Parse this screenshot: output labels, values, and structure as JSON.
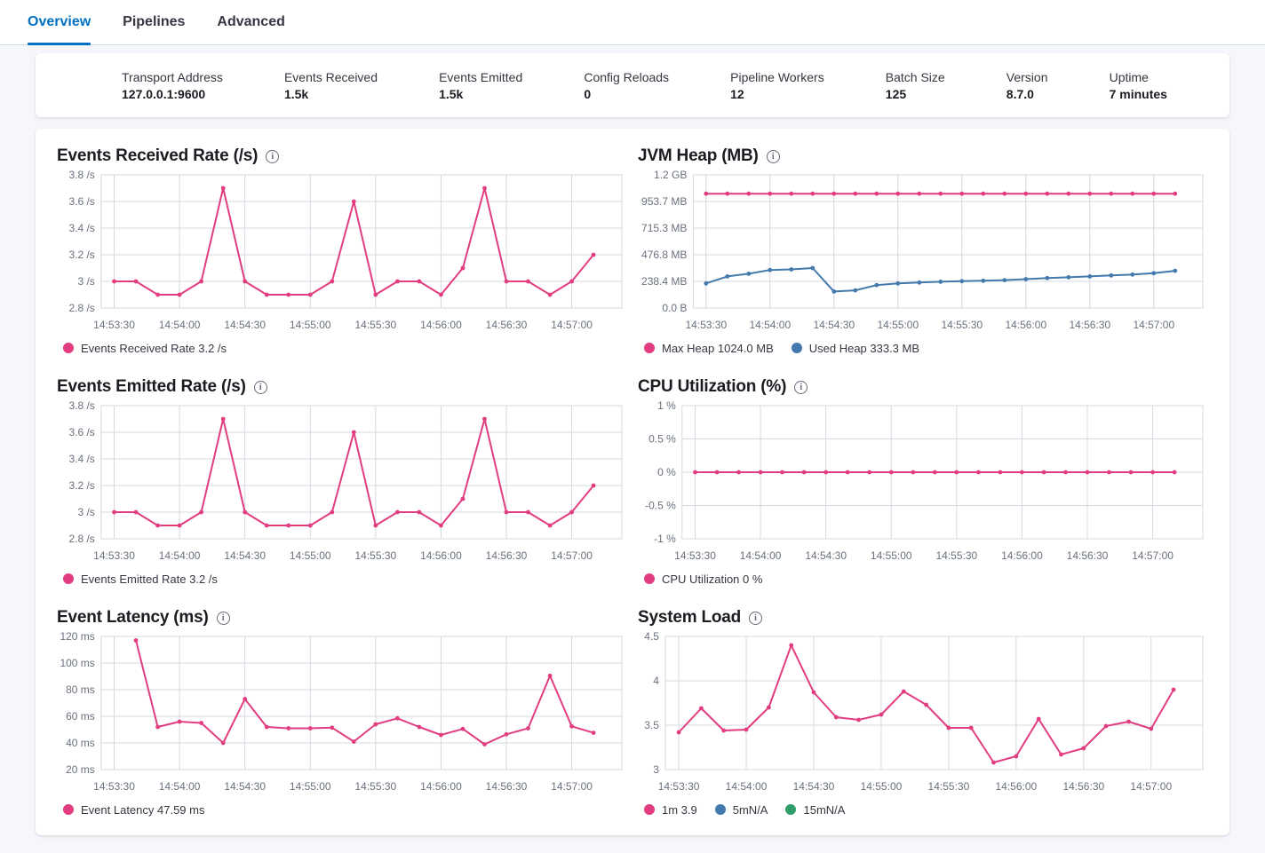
{
  "tabs": [
    {
      "label": "Overview",
      "active": true
    },
    {
      "label": "Pipelines",
      "active": false
    },
    {
      "label": "Advanced",
      "active": false
    }
  ],
  "summary": {
    "items": [
      {
        "label": "Transport Address",
        "value": "127.0.0.1:9600"
      },
      {
        "label": "Events Received",
        "value": "1.5k"
      },
      {
        "label": "Events Emitted",
        "value": "1.5k"
      },
      {
        "label": "Config Reloads",
        "value": "0"
      },
      {
        "label": "Pipeline Workers",
        "value": "12"
      },
      {
        "label": "Batch Size",
        "value": "125"
      },
      {
        "label": "Version",
        "value": "8.7.0"
      },
      {
        "label": "Uptime",
        "value": "7 minutes"
      }
    ]
  },
  "icons": {
    "info_glyph": "i"
  },
  "colors": {
    "pink": "#e23d80",
    "blue": "#4379ad",
    "green": "#2f9e69",
    "grid": "#d5d8e0",
    "tick_text": "#69707d"
  },
  "chart_data": [
    {
      "type": "line",
      "title": "Events Received Rate (/s)",
      "start_time": "14:53:30",
      "interval_seconds": 10,
      "ylim": [
        2.8,
        3.8
      ],
      "y_ticks": [
        {
          "value": 3.8,
          "label": "3.8 /s"
        },
        {
          "value": 3.6,
          "label": "3.6 /s"
        },
        {
          "value": 3.4,
          "label": "3.4 /s"
        },
        {
          "value": 3.2,
          "label": "3.2 /s"
        },
        {
          "value": 3.0,
          "label": "3 /s"
        },
        {
          "value": 2.8,
          "label": "2.8 /s"
        }
      ],
      "x_tick_indices": [
        0,
        3,
        6,
        9,
        12,
        15,
        18,
        21
      ],
      "x_tick_labels": [
        "14:53:30",
        "14:54:00",
        "14:54:30",
        "14:55:00",
        "14:55:30",
        "14:56:00",
        "14:56:30",
        "14:57:00"
      ],
      "series": [
        {
          "name": "Events Received Rate",
          "color": "pink",
          "values": [
            3,
            3,
            2.9,
            2.9,
            3,
            3.7,
            3,
            2.9,
            2.9,
            2.9,
            3,
            3.6,
            2.9,
            3,
            3,
            2.9,
            3.1,
            3.7,
            3,
            3,
            2.9,
            3,
            3.2
          ]
        }
      ],
      "legend": [
        {
          "label": "Events Received Rate 3.2 /s",
          "color": "pink"
        }
      ]
    },
    {
      "type": "line",
      "title": "JVM Heap (MB)",
      "start_time": "14:53:30",
      "interval_seconds": 10,
      "ylim": [
        0,
        1192.4
      ],
      "y_ticks": [
        {
          "value": 1192.4,
          "label": "1.2 GB"
        },
        {
          "value": 953.7,
          "label": "953.7 MB"
        },
        {
          "value": 715.3,
          "label": "715.3 MB"
        },
        {
          "value": 476.8,
          "label": "476.8 MB"
        },
        {
          "value": 238.4,
          "label": "238.4 MB"
        },
        {
          "value": 0,
          "label": "0.0 B"
        }
      ],
      "x_tick_indices": [
        0,
        3,
        6,
        9,
        12,
        15,
        18,
        21
      ],
      "x_tick_labels": [
        "14:53:30",
        "14:54:00",
        "14:54:30",
        "14:55:00",
        "14:55:30",
        "14:56:00",
        "14:56:30",
        "14:57:00"
      ],
      "series": [
        {
          "name": "Max Heap",
          "color": "pink",
          "values": [
            1024,
            1024,
            1024,
            1024,
            1024,
            1024,
            1024,
            1024,
            1024,
            1024,
            1024,
            1024,
            1024,
            1024,
            1024,
            1024,
            1024,
            1024,
            1024,
            1024,
            1024,
            1024,
            1024
          ]
        },
        {
          "name": "Used Heap",
          "color": "blue",
          "values": [
            220,
            283,
            307,
            340,
            346,
            358,
            148,
            158,
            205,
            220,
            228,
            235,
            240,
            244,
            250,
            258,
            268,
            275,
            283,
            292,
            300,
            312,
            333.3
          ]
        }
      ],
      "legend": [
        {
          "label": "Max Heap 1024.0 MB",
          "color": "pink"
        },
        {
          "label": "Used Heap 333.3 MB",
          "color": "blue"
        }
      ]
    },
    {
      "type": "line",
      "title": "Events Emitted Rate (/s)",
      "start_time": "14:53:30",
      "interval_seconds": 10,
      "ylim": [
        2.8,
        3.8
      ],
      "y_ticks": [
        {
          "value": 3.8,
          "label": "3.8 /s"
        },
        {
          "value": 3.6,
          "label": "3.6 /s"
        },
        {
          "value": 3.4,
          "label": "3.4 /s"
        },
        {
          "value": 3.2,
          "label": "3.2 /s"
        },
        {
          "value": 3.0,
          "label": "3 /s"
        },
        {
          "value": 2.8,
          "label": "2.8 /s"
        }
      ],
      "x_tick_indices": [
        0,
        3,
        6,
        9,
        12,
        15,
        18,
        21
      ],
      "x_tick_labels": [
        "14:53:30",
        "14:54:00",
        "14:54:30",
        "14:55:00",
        "14:55:30",
        "14:56:00",
        "14:56:30",
        "14:57:00"
      ],
      "series": [
        {
          "name": "Events Emitted Rate",
          "color": "pink",
          "values": [
            3,
            3,
            2.9,
            2.9,
            3,
            3.7,
            3,
            2.9,
            2.9,
            2.9,
            3,
            3.6,
            2.9,
            3,
            3,
            2.9,
            3.1,
            3.7,
            3,
            3,
            2.9,
            3,
            3.2
          ]
        }
      ],
      "legend": [
        {
          "label": "Events Emitted Rate 3.2 /s",
          "color": "pink"
        }
      ]
    },
    {
      "type": "line",
      "title": "CPU Utilization (%)",
      "start_time": "14:53:30",
      "interval_seconds": 10,
      "ylim": [
        -1,
        1
      ],
      "y_ticks": [
        {
          "value": 1,
          "label": "1 %"
        },
        {
          "value": 0.5,
          "label": "0.5 %"
        },
        {
          "value": 0,
          "label": "0 %"
        },
        {
          "value": -0.5,
          "label": "-0.5 %"
        },
        {
          "value": -1,
          "label": "-1 %"
        }
      ],
      "x_tick_indices": [
        0,
        3,
        6,
        9,
        12,
        15,
        18,
        21
      ],
      "x_tick_labels": [
        "14:53:30",
        "14:54:00",
        "14:54:30",
        "14:55:00",
        "14:55:30",
        "14:56:00",
        "14:56:30",
        "14:57:00"
      ],
      "series": [
        {
          "name": "CPU Utilization",
          "color": "pink",
          "values": [
            0,
            0,
            0,
            0,
            0,
            0,
            0,
            0,
            0,
            0,
            0,
            0,
            0,
            0,
            0,
            0,
            0,
            0,
            0,
            0,
            0,
            0,
            0
          ]
        }
      ],
      "legend": [
        {
          "label": "CPU Utilization 0 %",
          "color": "pink"
        }
      ]
    },
    {
      "type": "line",
      "title": "Event Latency (ms)",
      "start_time": "14:53:30",
      "interval_seconds": 10,
      "ylim": [
        20,
        120
      ],
      "y_ticks": [
        {
          "value": 120,
          "label": "120 ms"
        },
        {
          "value": 100,
          "label": "100 ms"
        },
        {
          "value": 80,
          "label": "80 ms"
        },
        {
          "value": 60,
          "label": "60 ms"
        },
        {
          "value": 40,
          "label": "40 ms"
        },
        {
          "value": 20,
          "label": "20 ms"
        }
      ],
      "x_tick_indices": [
        0,
        3,
        6,
        9,
        12,
        15,
        18,
        21
      ],
      "x_tick_labels": [
        "14:53:30",
        "14:54:00",
        "14:54:30",
        "14:55:00",
        "14:55:30",
        "14:56:00",
        "14:56:30",
        "14:57:00"
      ],
      "series": [
        {
          "name": "Event Latency",
          "color": "pink",
          "values": [
            null,
            117,
            52,
            56,
            55,
            40,
            73,
            52,
            51,
            51,
            51.5,
            41,
            54,
            58.5,
            52,
            46,
            50.5,
            39,
            46.5,
            51,
            90.5,
            52.5,
            47.59
          ]
        }
      ],
      "legend": [
        {
          "label": "Event Latency 47.59 ms",
          "color": "pink"
        }
      ]
    },
    {
      "type": "line",
      "title": "System Load",
      "start_time": "14:53:30",
      "interval_seconds": 10,
      "ylim": [
        3,
        4.5
      ],
      "y_ticks": [
        {
          "value": 4.5,
          "label": "4.5"
        },
        {
          "value": 4,
          "label": "4"
        },
        {
          "value": 3.5,
          "label": "3.5"
        },
        {
          "value": 3,
          "label": "3"
        }
      ],
      "x_tick_indices": [
        0,
        3,
        6,
        9,
        12,
        15,
        18,
        21
      ],
      "x_tick_labels": [
        "14:53:30",
        "14:54:00",
        "14:54:30",
        "14:55:00",
        "14:55:30",
        "14:56:00",
        "14:56:30",
        "14:57:00"
      ],
      "series": [
        {
          "name": "1m",
          "color": "pink",
          "values": [
            3.42,
            3.69,
            3.44,
            3.45,
            3.7,
            4.4,
            3.87,
            3.59,
            3.56,
            3.62,
            3.88,
            3.73,
            3.47,
            3.47,
            3.08,
            3.15,
            3.57,
            3.17,
            3.24,
            3.49,
            3.54,
            3.46,
            3.9
          ]
        }
      ],
      "legend": [
        {
          "label": "1m 3.9",
          "color": "pink"
        },
        {
          "label": "5mN/A",
          "color": "blue"
        },
        {
          "label": "15mN/A",
          "color": "green"
        }
      ]
    }
  ]
}
